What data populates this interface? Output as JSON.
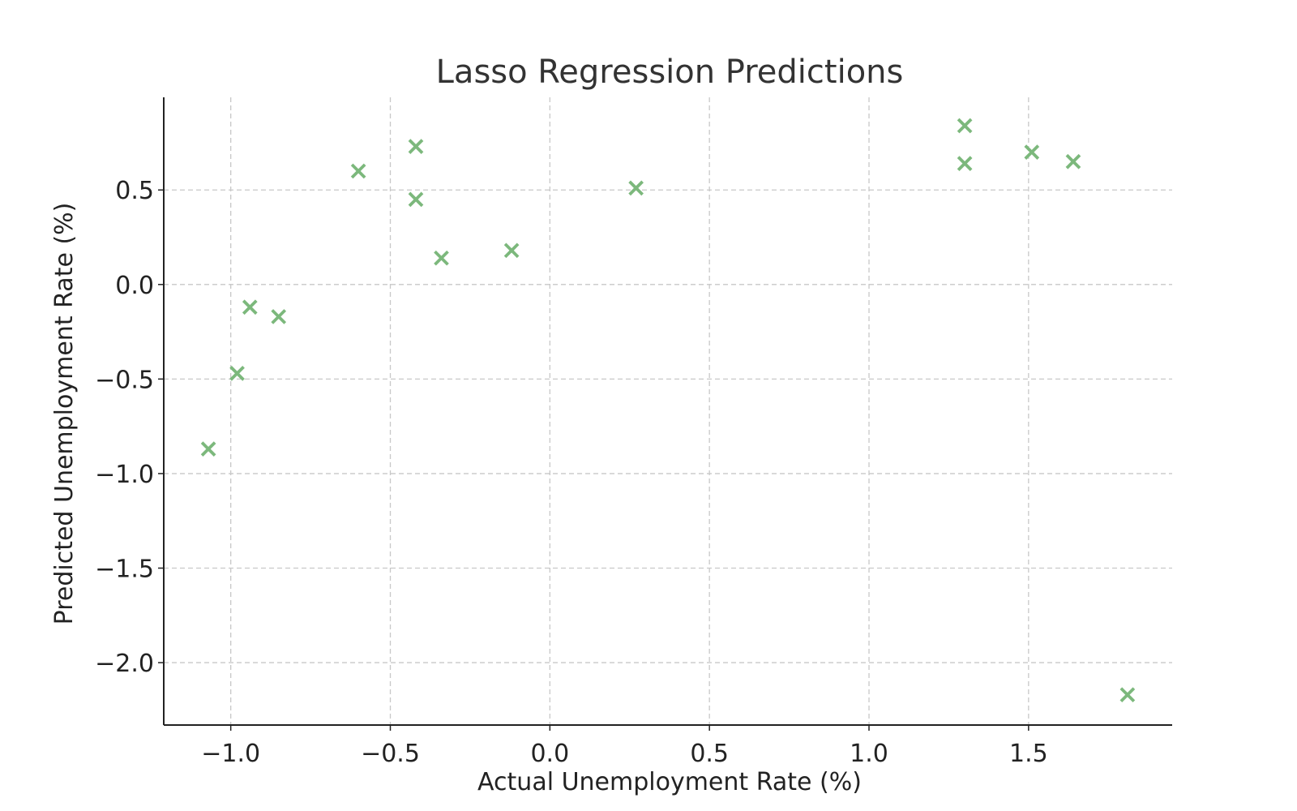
{
  "chart_data": {
    "type": "scatter",
    "title": "Lasso Regression Predictions",
    "xlabel": "Actual Unemployment Rate (%)",
    "ylabel": "Predicted Unemployment Rate (%)",
    "xlim": [
      -1.21,
      1.95
    ],
    "ylim": [
      -2.33,
      0.99
    ],
    "xticks": [
      -1.0,
      -0.5,
      0.0,
      0.5,
      1.0,
      1.5
    ],
    "xtick_labels": [
      "−1.0",
      "−0.5",
      "0.0",
      "0.5",
      "1.0",
      "1.5"
    ],
    "yticks": [
      -2.0,
      -1.5,
      -1.0,
      -0.5,
      0.0,
      0.5
    ],
    "ytick_labels": [
      "−2.0",
      "−1.5",
      "−1.0",
      "−0.5",
      "0.0",
      "0.5"
    ],
    "grid": true,
    "marker": "x",
    "color": "#7cb87c",
    "points": [
      {
        "x": -1.07,
        "y": -0.87
      },
      {
        "x": -0.98,
        "y": -0.47
      },
      {
        "x": -0.94,
        "y": -0.12
      },
      {
        "x": -0.85,
        "y": -0.17
      },
      {
        "x": -0.6,
        "y": 0.6
      },
      {
        "x": -0.42,
        "y": 0.73
      },
      {
        "x": -0.42,
        "y": 0.45
      },
      {
        "x": -0.34,
        "y": 0.14
      },
      {
        "x": -0.12,
        "y": 0.18
      },
      {
        "x": 0.27,
        "y": 0.51
      },
      {
        "x": 1.3,
        "y": 0.84
      },
      {
        "x": 1.3,
        "y": 0.64
      },
      {
        "x": 1.51,
        "y": 0.7
      },
      {
        "x": 1.64,
        "y": 0.65
      },
      {
        "x": 1.81,
        "y": -2.17
      }
    ]
  }
}
